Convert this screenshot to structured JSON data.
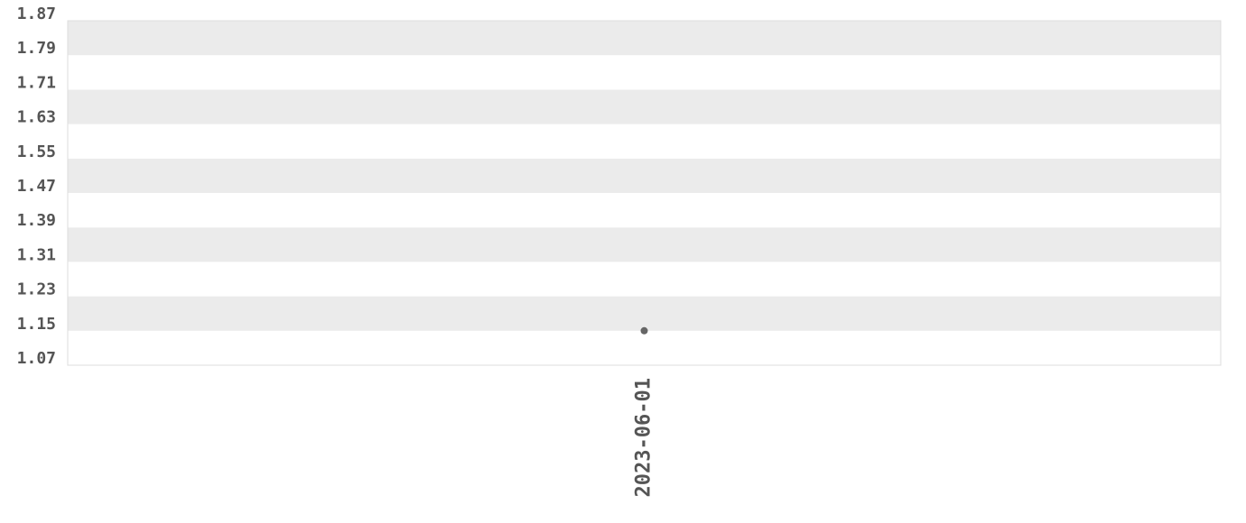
{
  "chart_data": {
    "type": "line",
    "categories": [
      "2023-06-01"
    ],
    "values": [
      1.15
    ],
    "color": "#666666",
    "ylim": [
      1.07,
      1.87
    ],
    "yticks": [
      1.07,
      1.15,
      1.23,
      1.31,
      1.39,
      1.47,
      1.55,
      1.63,
      1.71,
      1.79,
      1.87
    ],
    "grid": true
  }
}
